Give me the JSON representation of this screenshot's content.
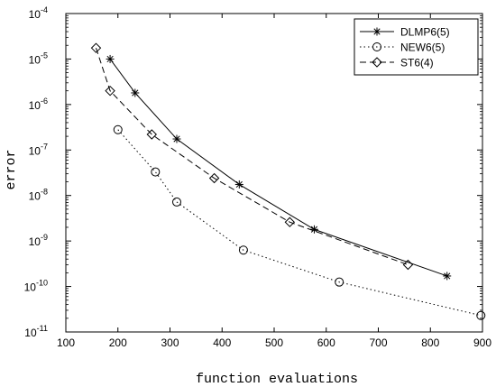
{
  "chart_data": {
    "type": "line",
    "xlabel": "function evaluations",
    "ylabel": "error",
    "xlim": [
      100,
      900
    ],
    "ylim": [
      1e-11,
      0.0001
    ],
    "yscale": "log",
    "grid": false,
    "legend_position": "top-right",
    "x_ticks": [
      {
        "value": 100,
        "label": "100"
      },
      {
        "value": 200,
        "label": "200"
      },
      {
        "value": 300,
        "label": "300"
      },
      {
        "value": 400,
        "label": "400"
      },
      {
        "value": 500,
        "label": "500"
      },
      {
        "value": 600,
        "label": "600"
      },
      {
        "value": 700,
        "label": "700"
      },
      {
        "value": 800,
        "label": "800"
      },
      {
        "value": 900,
        "label": "900"
      }
    ],
    "y_ticks": [
      {
        "exp": -11,
        "base": "10",
        "power": "-11"
      },
      {
        "exp": -10,
        "base": "10",
        "power": "-10"
      },
      {
        "exp": -9,
        "base": "10",
        "power": "-9"
      },
      {
        "exp": -8,
        "base": "10",
        "power": "-8"
      },
      {
        "exp": -7,
        "base": "10",
        "power": "-7"
      },
      {
        "exp": -6,
        "base": "10",
        "power": "-6"
      },
      {
        "exp": -5,
        "base": "10",
        "power": "-5"
      },
      {
        "exp": -4,
        "base": "10",
        "power": "-4"
      }
    ],
    "series": [
      {
        "name": "DLMP6(5)",
        "line": "solid",
        "marker": "star",
        "color": "#000000",
        "points": [
          {
            "x": 185,
            "y": 1e-05
          },
          {
            "x": 233,
            "y": 1.8e-06
          },
          {
            "x": 313,
            "y": 1.75e-07
          },
          {
            "x": 433,
            "y": 1.75e-08
          },
          {
            "x": 577,
            "y": 1.8e-09
          },
          {
            "x": 832,
            "y": 1.7e-10
          }
        ]
      },
      {
        "name": "NEW6(5)",
        "line": "dotted",
        "marker": "circle",
        "color": "#000000",
        "points": [
          {
            "x": 200,
            "y": 2.8e-07
          },
          {
            "x": 272,
            "y": 3.3e-08
          },
          {
            "x": 313,
            "y": 7.2e-09
          },
          {
            "x": 441,
            "y": 6.3e-10
          },
          {
            "x": 625,
            "y": 1.25e-10
          },
          {
            "x": 897,
            "y": 2.3e-11
          }
        ]
      },
      {
        "name": "ST6(4)",
        "line": "dashed",
        "marker": "diamond",
        "color": "#000000",
        "points": [
          {
            "x": 158,
            "y": 1.75e-05
          },
          {
            "x": 185,
            "y": 2e-06
          },
          {
            "x": 265,
            "y": 2.2e-07
          },
          {
            "x": 385,
            "y": 2.4e-08
          },
          {
            "x": 530,
            "y": 2.6e-09
          },
          {
            "x": 757,
            "y": 3e-10
          }
        ]
      }
    ]
  }
}
